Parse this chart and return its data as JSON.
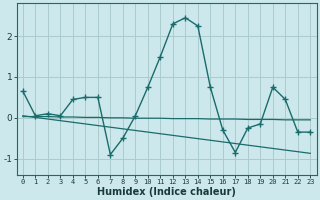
{
  "title": "",
  "xlabel": "Humidex (Indice chaleur)",
  "background_color": "#cce8ec",
  "grid_color": "#aacccc",
  "line_color": "#1a6b6b",
  "x_data": [
    0,
    1,
    2,
    3,
    4,
    5,
    6,
    7,
    8,
    9,
    10,
    11,
    12,
    13,
    14,
    15,
    16,
    17,
    18,
    19,
    20,
    21,
    22,
    23
  ],
  "y_main": [
    0.65,
    0.05,
    0.1,
    0.05,
    0.45,
    0.5,
    0.5,
    -0.9,
    -0.5,
    0.05,
    0.75,
    1.5,
    2.3,
    2.45,
    2.25,
    0.75,
    -0.3,
    -0.85,
    -0.25,
    -0.15,
    0.75,
    0.45,
    -0.35,
    -0.35
  ],
  "y_trend1": [
    0.03,
    0.03,
    0.03,
    0.02,
    0.02,
    0.01,
    0.01,
    0.0,
    0.0,
    -0.01,
    -0.01,
    -0.01,
    -0.02,
    -0.02,
    -0.02,
    -0.03,
    -0.03,
    -0.03,
    -0.04,
    -0.04,
    -0.04,
    -0.05,
    -0.05,
    -0.05
  ],
  "y_trend2": [
    0.05,
    0.01,
    -0.03,
    -0.07,
    -0.11,
    -0.15,
    -0.19,
    -0.23,
    -0.27,
    -0.31,
    -0.35,
    -0.39,
    -0.43,
    -0.47,
    -0.51,
    -0.55,
    -0.59,
    -0.63,
    -0.67,
    -0.71,
    -0.75,
    -0.79,
    -0.83,
    -0.87
  ],
  "ylim": [
    -1.4,
    2.8
  ],
  "yticks": [
    -1,
    0,
    1,
    2
  ],
  "xlim": [
    -0.5,
    23.5
  ]
}
